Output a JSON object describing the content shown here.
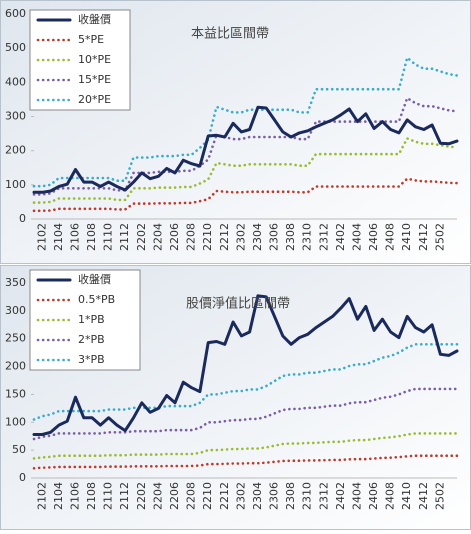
{
  "chart_data": [
    {
      "type": "line",
      "title": "本益比區間帶",
      "categories": [
        null,
        "2102",
        null,
        "2104",
        null,
        "2106",
        null,
        "2108",
        null,
        "2110",
        null,
        "2112",
        null,
        "2202",
        null,
        "2204",
        null,
        "2206",
        null,
        "2208",
        null,
        "2210",
        null,
        "2212",
        null,
        "2302",
        null,
        "2304",
        null,
        "2306",
        null,
        "2308",
        null,
        "2310",
        null,
        "2312",
        null,
        "2402",
        null,
        "2404",
        null,
        "2406",
        null,
        "2408",
        null,
        "2410",
        null,
        "2412",
        null,
        "2502",
        null,
        null
      ],
      "ylim": [
        0,
        600
      ],
      "yticks": [
        0,
        100,
        200,
        300,
        400,
        500,
        600
      ],
      "legend": "top-left",
      "series": [
        {
          "name": "收盤價",
          "color": "#1b2a5c",
          "line_style": "solid",
          "values": [
            78,
            78,
            82,
            95,
            102,
            145,
            108,
            108,
            95,
            108,
            95,
            85,
            108,
            135,
            118,
            125,
            148,
            135,
            172,
            162,
            155,
            243,
            245,
            240,
            280,
            255,
            262,
            327,
            325,
            290,
            255,
            240,
            252,
            258,
            270,
            280,
            290,
            305,
            322,
            285,
            308,
            265,
            285,
            262,
            252,
            290,
            270,
            262,
            275,
            222,
            220,
            228
          ]
        },
        {
          "name": "5*PE",
          "color": "#c0392b",
          "line_style": "dotted",
          "values": [
            24,
            24,
            25,
            30,
            30,
            30,
            30,
            30,
            30,
            30,
            28,
            28,
            45,
            45,
            45,
            46,
            46,
            46,
            47,
            47,
            52,
            58,
            82,
            80,
            78,
            78,
            80,
            80,
            80,
            80,
            80,
            80,
            78,
            78,
            95,
            95,
            95,
            95,
            95,
            95,
            95,
            95,
            95,
            95,
            95,
            118,
            113,
            110,
            110,
            108,
            106,
            105
          ]
        },
        {
          "name": "10*PE",
          "color": "#9bbb30",
          "line_style": "dotted",
          "values": [
            48,
            48,
            50,
            60,
            60,
            60,
            60,
            60,
            60,
            60,
            56,
            56,
            90,
            90,
            90,
            92,
            92,
            92,
            94,
            94,
            104,
            116,
            164,
            160,
            156,
            156,
            160,
            160,
            160,
            160,
            160,
            160,
            156,
            156,
            190,
            190,
            190,
            190,
            190,
            190,
            190,
            190,
            190,
            190,
            190,
            236,
            226,
            220,
            220,
            216,
            212,
            210
          ]
        },
        {
          "name": "15*PE",
          "color": "#7b5ea7",
          "line_style": "dotted",
          "values": [
            72,
            72,
            75,
            90,
            90,
            90,
            90,
            90,
            90,
            90,
            84,
            84,
            135,
            135,
            135,
            138,
            138,
            138,
            141,
            141,
            156,
            174,
            246,
            240,
            234,
            234,
            240,
            240,
            240,
            240,
            240,
            240,
            234,
            234,
            285,
            285,
            285,
            285,
            285,
            285,
            285,
            285,
            285,
            285,
            285,
            354,
            339,
            330,
            330,
            324,
            318,
            315
          ]
        },
        {
          "name": "20*PE",
          "color": "#3aaccc",
          "line_style": "dotted",
          "values": [
            96,
            96,
            100,
            120,
            120,
            120,
            120,
            120,
            120,
            120,
            112,
            112,
            180,
            180,
            180,
            184,
            184,
            184,
            188,
            188,
            208,
            232,
            328,
            320,
            312,
            312,
            320,
            320,
            320,
            320,
            320,
            320,
            312,
            312,
            380,
            380,
            380,
            380,
            380,
            380,
            380,
            380,
            380,
            380,
            380,
            472,
            452,
            440,
            440,
            432,
            424,
            420
          ]
        }
      ]
    },
    {
      "type": "line",
      "title": "股價淨值比區間帶",
      "categories": [
        null,
        "2102",
        null,
        "2104",
        null,
        "2106",
        null,
        "2108",
        null,
        "2110",
        null,
        "2112",
        null,
        "2202",
        null,
        "2204",
        null,
        "2206",
        null,
        "2208",
        null,
        "2210",
        null,
        "2212",
        null,
        "2302",
        null,
        "2304",
        null,
        "2306",
        null,
        "2308",
        null,
        "2310",
        null,
        "2312",
        null,
        "2402",
        null,
        "2404",
        null,
        "2406",
        null,
        "2408",
        null,
        "2410",
        null,
        "2412",
        null,
        "2502",
        null,
        null
      ],
      "ylim": [
        0,
        350
      ],
      "yticks": [
        0,
        50,
        100,
        150,
        200,
        250,
        300,
        350
      ],
      "legend": "top-left",
      "series": [
        {
          "name": "收盤價",
          "color": "#1b2a5c",
          "line_style": "solid",
          "values": [
            78,
            78,
            82,
            95,
            102,
            145,
            108,
            108,
            95,
            108,
            95,
            85,
            108,
            135,
            118,
            125,
            148,
            135,
            172,
            162,
            155,
            243,
            245,
            240,
            280,
            255,
            262,
            327,
            325,
            290,
            255,
            240,
            252,
            258,
            270,
            280,
            290,
            305,
            322,
            285,
            308,
            265,
            285,
            262,
            252,
            290,
            270,
            262,
            275,
            222,
            220,
            228
          ]
        },
        {
          "name": "0.5*PB",
          "color": "#c0392b",
          "line_style": "dotted",
          "values": [
            17.5,
            18.5,
            19,
            20,
            20,
            20,
            20,
            20,
            20,
            20.5,
            20.5,
            20.5,
            21,
            21,
            21,
            21,
            21.5,
            21.5,
            21.5,
            21.5,
            22.5,
            25,
            25,
            25.5,
            26,
            26,
            26.5,
            26.5,
            27.5,
            29,
            30.5,
            31,
            31,
            31.5,
            31.5,
            32,
            32.5,
            32.5,
            33.5,
            34,
            34,
            35,
            36,
            36.5,
            37.5,
            39,
            40,
            40,
            40,
            40,
            40,
            40
          ]
        },
        {
          "name": "1*PB",
          "color": "#9bbb30",
          "line_style": "dotted",
          "values": [
            35,
            37,
            38,
            40,
            40,
            40,
            40,
            40,
            40,
            41,
            41,
            41,
            42,
            42,
            42,
            42,
            43,
            43,
            43,
            43,
            45,
            50,
            50,
            51,
            52,
            52,
            53,
            53,
            55,
            58,
            61,
            62,
            62,
            63,
            63,
            64,
            65,
            65,
            67,
            68,
            68,
            70,
            72,
            73,
            75,
            78,
            80,
            80,
            80,
            80,
            80,
            80
          ]
        },
        {
          "name": "2*PB",
          "color": "#7b5ea7",
          "line_style": "dotted",
          "values": [
            70,
            74,
            76,
            80,
            80,
            80,
            80,
            80,
            80,
            82,
            82,
            82,
            84,
            84,
            84,
            84,
            86,
            86,
            86,
            86,
            90,
            100,
            100,
            102,
            104,
            104,
            106,
            106,
            110,
            116,
            122,
            124,
            124,
            126,
            126,
            128,
            130,
            130,
            134,
            136,
            136,
            140,
            144,
            146,
            150,
            156,
            160,
            160,
            160,
            160,
            160,
            160
          ]
        },
        {
          "name": "3*PB",
          "color": "#3aaccc",
          "line_style": "dotted",
          "values": [
            105,
            111,
            114,
            120,
            120,
            120,
            120,
            120,
            120,
            123,
            123,
            123,
            126,
            126,
            126,
            126,
            129,
            129,
            129,
            129,
            135,
            150,
            150,
            153,
            156,
            156,
            159,
            159,
            165,
            174,
            183,
            186,
            186,
            189,
            189,
            192,
            195,
            195,
            201,
            204,
            204,
            210,
            216,
            219,
            225,
            234,
            240,
            240,
            240,
            240,
            240,
            240
          ]
        }
      ]
    }
  ]
}
